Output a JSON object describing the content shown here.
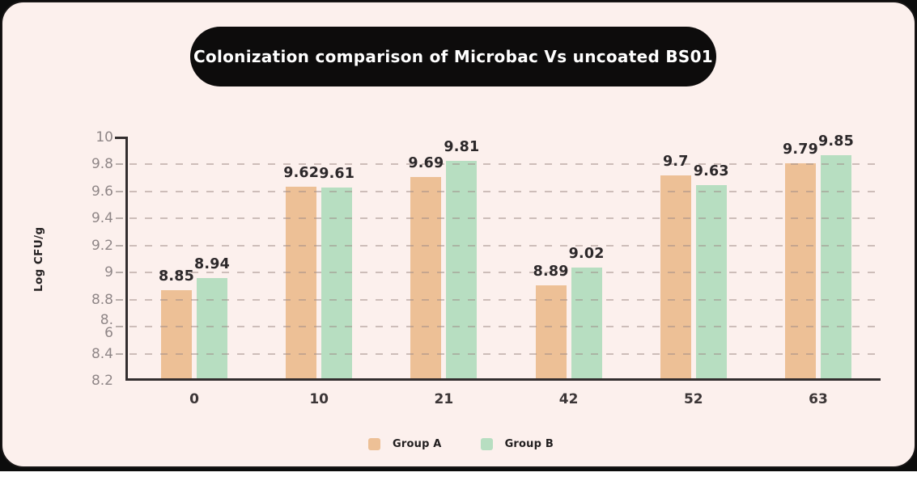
{
  "title": {
    "text": "Colonization comparison of Microbac Vs uncoated BS01"
  },
  "colors": {
    "page_bottom": "#ffffff",
    "frame_background": "#0c0c0c",
    "card_background": "#fcf0ed",
    "card_border": "#181616",
    "title_pill": "#0d0c0c",
    "title_text": "#ffffff",
    "axis_line": "#332e2f",
    "grid_dash": "#9e8a86",
    "ytick_text": "#8f8687",
    "xtick_text": "#3c3637",
    "value_label_text": "#2c282a",
    "group_a": "#edc096",
    "group_b": "#b7dec1"
  },
  "chart_data": {
    "type": "bar",
    "title": "Colonization comparison of Microbac Vs uncoated BS01",
    "categories": [
      "0",
      "10",
      "21",
      "42",
      "52",
      "63"
    ],
    "series": [
      {
        "name": "Group A",
        "color": "#edc096",
        "values": [
          8.85,
          9.62,
          9.69,
          8.89,
          9.7,
          9.79
        ]
      },
      {
        "name": "Group B",
        "color": "#b7dec1",
        "values": [
          8.94,
          9.61,
          9.81,
          9.02,
          9.63,
          9.85
        ]
      }
    ],
    "xlabel": "",
    "ylabel": "Log CFU/g",
    "ylim": [
      8.2,
      10
    ],
    "ytick_values": [
      10,
      9.8,
      9.6,
      9.4,
      9.2,
      9,
      8.8,
      8.6,
      8.4,
      8.2
    ],
    "ytick_labels": [
      "10",
      "9.8",
      "9.6",
      "9.4",
      "9.2",
      "9",
      "8.8",
      "8.\n6",
      "8.4",
      "8.2"
    ],
    "grid": "horizontal-dashed",
    "value_labels_shown": true,
    "legend_position": "bottom"
  },
  "legend": {
    "items": [
      {
        "label": "Group A",
        "color": "#edc096"
      },
      {
        "label": "Group B",
        "color": "#b7dec1"
      }
    ]
  }
}
